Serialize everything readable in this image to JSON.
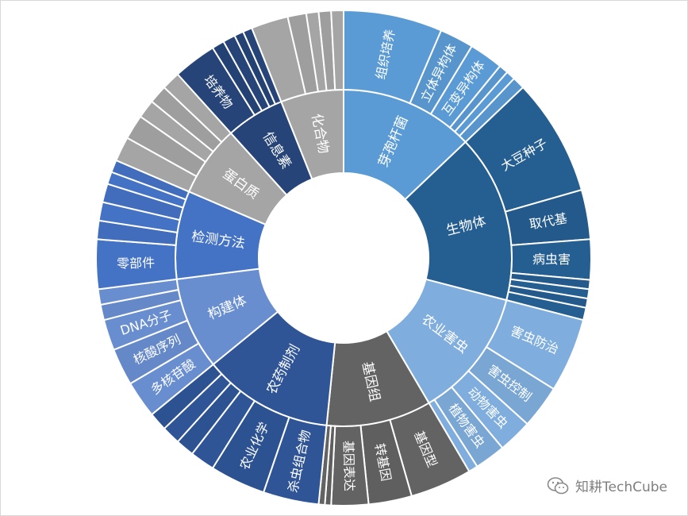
{
  "chart_data": {
    "type": "sunburst",
    "title": "",
    "inner": [
      {
        "label": "芽孢杆菌",
        "value": 32,
        "color": "#5b9bd5"
      },
      {
        "label": "生物体",
        "value": 40,
        "color": "#255e91"
      },
      {
        "label": "农业害虫",
        "value": 31,
        "color": "#7faddd"
      },
      {
        "label": "基因组",
        "value": 25,
        "color": "#636363"
      },
      {
        "label": "农药制剂",
        "value": 31,
        "color": "#2f5597"
      },
      {
        "label": "构建体",
        "value": 22,
        "color": "#698ed0"
      },
      {
        "label": "检测方法",
        "value": 21,
        "color": "#4472c4"
      },
      {
        "label": "蛋白质",
        "value": 17,
        "color": "#a5a5a5"
      },
      {
        "label": "信息素",
        "value": 14,
        "color": "#264478"
      },
      {
        "label": "化合物",
        "value": 15,
        "color": "#a5a5a5"
      }
    ],
    "outer": [
      {
        "label": "组织培养",
        "value": 16,
        "parent": 0
      },
      {
        "label": "立体异构体",
        "value": 5.5,
        "parent": 0
      },
      {
        "label": "互变异构体",
        "value": 5.5,
        "parent": 0
      },
      {
        "label": "",
        "value": 1.5,
        "parent": 0
      },
      {
        "label": "",
        "value": 1.5,
        "parent": 0
      },
      {
        "label": "",
        "value": 2,
        "parent": 0
      },
      {
        "label": "大豆种子",
        "value": 19,
        "parent": 1
      },
      {
        "label": "取代基",
        "value": 8,
        "parent": 1
      },
      {
        "label": "病虫害",
        "value": 6.5,
        "parent": 1
      },
      {
        "label": "",
        "value": 1.5,
        "parent": 1
      },
      {
        "label": "",
        "value": 1.5,
        "parent": 1
      },
      {
        "label": "",
        "value": 1.5,
        "parent": 1
      },
      {
        "label": "",
        "value": 2,
        "parent": 1
      },
      {
        "label": "害虫防治",
        "value": 12,
        "parent": 2
      },
      {
        "label": "害虫控制",
        "value": 7,
        "parent": 2
      },
      {
        "label": "动物害虫",
        "value": 5.5,
        "parent": 2
      },
      {
        "label": "植物害虫",
        "value": 5,
        "parent": 2
      },
      {
        "label": "",
        "value": 1.5,
        "parent": 2
      },
      {
        "label": "基因型",
        "value": 10,
        "parent": 3
      },
      {
        "label": "转基因",
        "value": 7,
        "parent": 3
      },
      {
        "label": "基因表达",
        "value": 6,
        "parent": 3
      },
      {
        "label": "",
        "value": 1,
        "parent": 3
      },
      {
        "label": "",
        "value": 1,
        "parent": 3
      },
      {
        "label": "杀虫组合物",
        "value": 9,
        "parent": 4
      },
      {
        "label": "农业化学",
        "value": 9,
        "parent": 4
      },
      {
        "label": "",
        "value": 4,
        "parent": 4
      },
      {
        "label": "",
        "value": 3,
        "parent": 4
      },
      {
        "label": "",
        "value": 3,
        "parent": 4
      },
      {
        "label": "",
        "value": 3,
        "parent": 4
      },
      {
        "label": "多核苷酸",
        "value": 6,
        "parent": 5
      },
      {
        "label": "核酸序列",
        "value": 6,
        "parent": 5
      },
      {
        "label": "DNA分子",
        "value": 5,
        "parent": 5
      },
      {
        "label": "",
        "value": 2.5,
        "parent": 5
      },
      {
        "label": "",
        "value": 2.5,
        "parent": 5
      },
      {
        "label": "零部件",
        "value": 8,
        "parent": 6
      },
      {
        "label": "",
        "value": 3,
        "parent": 6
      },
      {
        "label": "",
        "value": 3,
        "parent": 6
      },
      {
        "label": "",
        "value": 3,
        "parent": 6
      },
      {
        "label": "",
        "value": 2,
        "parent": 6
      },
      {
        "label": "",
        "value": 2,
        "parent": 6
      },
      {
        "label": "",
        "value": 4,
        "parent": 7
      },
      {
        "label": "",
        "value": 4,
        "parent": 7
      },
      {
        "label": "",
        "value": 3,
        "parent": 7
      },
      {
        "label": "",
        "value": 3,
        "parent": 7
      },
      {
        "label": "",
        "value": 3,
        "parent": 7
      },
      {
        "label": "培养物",
        "value": 7,
        "parent": 8
      },
      {
        "label": "",
        "value": 2,
        "parent": 8
      },
      {
        "label": "",
        "value": 2,
        "parent": 8
      },
      {
        "label": "",
        "value": 1.5,
        "parent": 8
      },
      {
        "label": "",
        "value": 1.5,
        "parent": 8
      },
      {
        "label": "",
        "value": 6,
        "parent": 9
      },
      {
        "label": "",
        "value": 3,
        "parent": 9
      },
      {
        "label": "",
        "value": 2,
        "parent": 9
      },
      {
        "label": "",
        "value": 2,
        "parent": 9
      },
      {
        "label": "",
        "value": 2,
        "parent": 9
      }
    ]
  },
  "watermark": {
    "text": "知耕TechCube",
    "icon": "wechat-icon"
  }
}
